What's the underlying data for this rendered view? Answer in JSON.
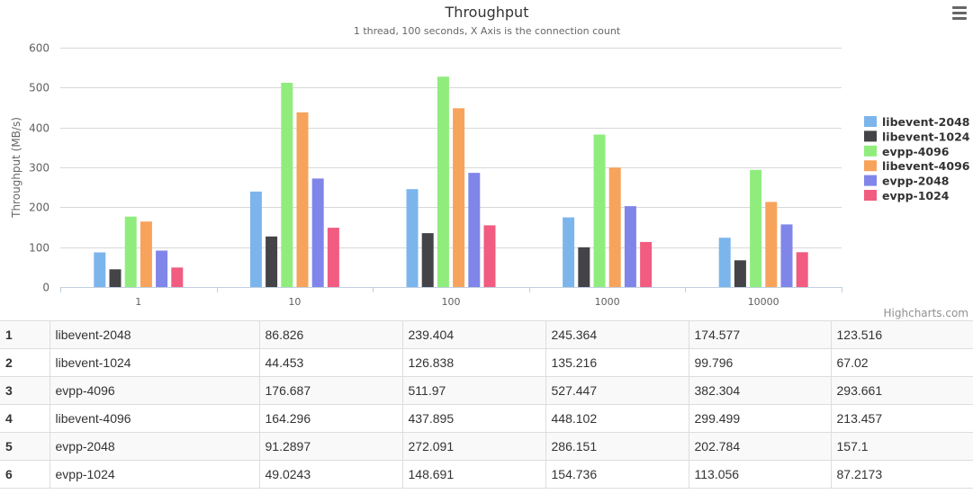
{
  "chart_data": {
    "type": "bar",
    "title": "Throughput",
    "subtitle": "1 thread, 100 seconds, X Axis is the connection count",
    "ylabel": "Throughput (MB/s)",
    "xlabel": "",
    "categories": [
      "1",
      "10",
      "100",
      "1000",
      "10000"
    ],
    "ylim": [
      0,
      600
    ],
    "yticks": [
      0,
      100,
      200,
      300,
      400,
      500,
      600
    ],
    "grid": true,
    "legend_position": "right",
    "series": [
      {
        "name": "libevent-2048",
        "color": "#7cb5ec",
        "values": [
          86.826,
          239.404,
          245.364,
          174.577,
          123.516
        ]
      },
      {
        "name": "libevent-1024",
        "color": "#434348",
        "values": [
          44.453,
          126.838,
          135.216,
          99.796,
          67.02
        ]
      },
      {
        "name": "evpp-4096",
        "color": "#90ed7d",
        "values": [
          176.687,
          511.97,
          527.447,
          382.304,
          293.661
        ]
      },
      {
        "name": "libevent-4096",
        "color": "#f7a35c",
        "values": [
          164.296,
          437.895,
          448.102,
          299.499,
          213.457
        ]
      },
      {
        "name": "evpp-2048",
        "color": "#8085e9",
        "values": [
          91.2897,
          272.091,
          286.151,
          202.784,
          157.1
        ]
      },
      {
        "name": "evpp-1024",
        "color": "#f15c80",
        "values": [
          49.0243,
          148.691,
          154.736,
          113.056,
          87.2173
        ]
      }
    ]
  },
  "credits": "Highcharts.com",
  "menu_icon": "hamburger-menu-icon",
  "table": {
    "rows": [
      [
        "1",
        "libevent-2048",
        "86.826",
        "239.404",
        "245.364",
        "174.577",
        "123.516"
      ],
      [
        "2",
        "libevent-1024",
        "44.453",
        "126.838",
        "135.216",
        "99.796",
        "67.02"
      ],
      [
        "3",
        "evpp-4096",
        "176.687",
        "511.97",
        "527.447",
        "382.304",
        "293.661"
      ],
      [
        "4",
        "libevent-4096",
        "164.296",
        "437.895",
        "448.102",
        "299.499",
        "213.457"
      ],
      [
        "5",
        "evpp-2048",
        "91.2897",
        "272.091",
        "286.151",
        "202.784",
        "157.1"
      ],
      [
        "6",
        "evpp-1024",
        "49.0243",
        "148.691",
        "154.736",
        "113.056",
        "87.2173"
      ]
    ]
  }
}
